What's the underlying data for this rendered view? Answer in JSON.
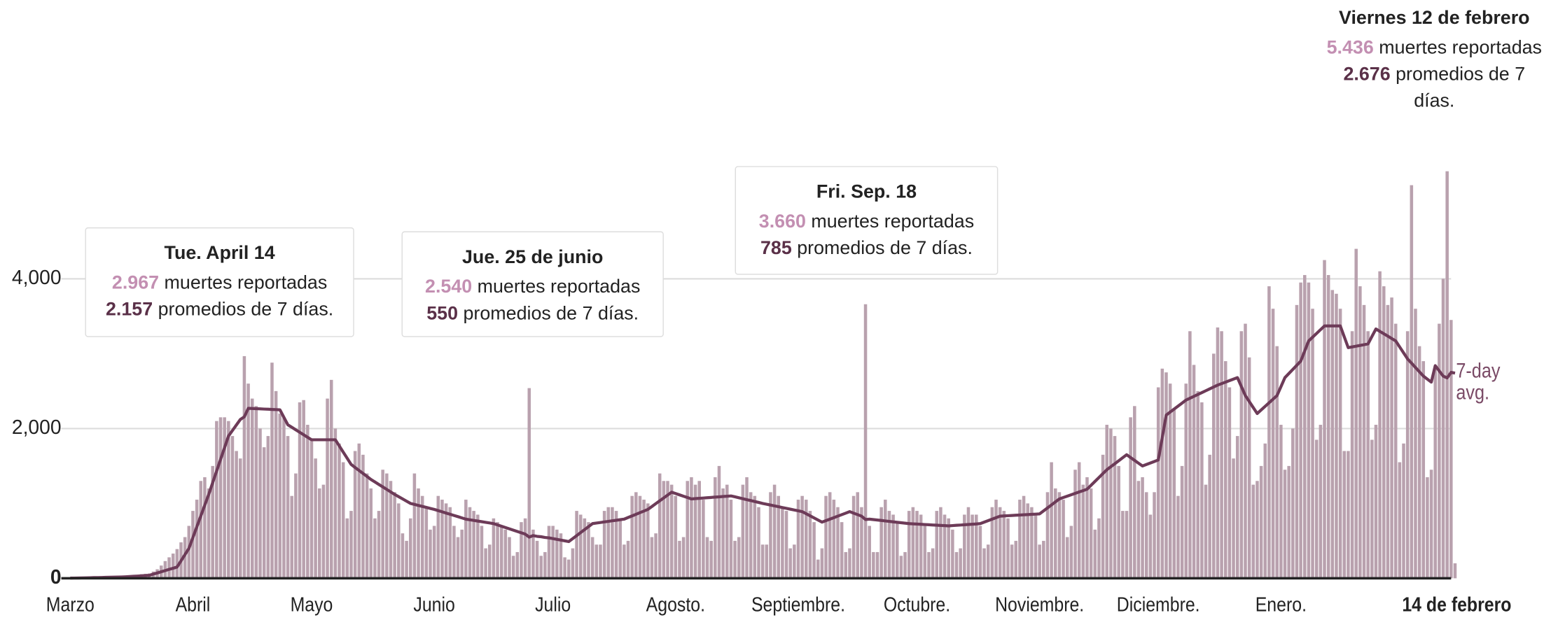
{
  "chart_data": {
    "type": "bar",
    "ylim": [
      0,
      5500
    ],
    "yticks": [
      0,
      {
        "value": 2000,
        "label": "2,000"
      },
      {
        "value": 4000,
        "label": "4,000"
      }
    ],
    "grid": true,
    "categories": [
      "Marzo",
      null,
      null,
      null,
      null,
      null,
      null,
      null,
      null,
      null,
      null,
      null,
      null,
      null,
      null,
      null,
      null,
      null,
      null,
      null,
      null,
      null,
      null,
      null,
      null,
      null,
      null,
      null,
      null,
      null,
      null,
      "Abril",
      null,
      null,
      null,
      null,
      null,
      null,
      null,
      null,
      null,
      null,
      null,
      null,
      null,
      null,
      null,
      null,
      null,
      null,
      null,
      null,
      null,
      null,
      null,
      null,
      null,
      null,
      null,
      null,
      null,
      "Mayo",
      null,
      null,
      null,
      null,
      null,
      null,
      null,
      null,
      null,
      null,
      null,
      null,
      null,
      null,
      null,
      null,
      null,
      null,
      null,
      null,
      null,
      null,
      null,
      null,
      null,
      null,
      null,
      null,
      null,
      null,
      "Junio",
      null,
      null,
      null,
      null,
      null,
      null,
      null,
      null,
      null,
      null,
      null,
      null,
      null,
      null,
      null,
      null,
      null,
      null,
      null,
      null,
      null,
      null,
      null,
      null,
      null,
      null,
      null,
      null,
      null,
      "Julio",
      null,
      null,
      null,
      null,
      null,
      null,
      null,
      null,
      null,
      null,
      null,
      null,
      null,
      null,
      null,
      null,
      null,
      null,
      null,
      null,
      null,
      null,
      null,
      null,
      null,
      null,
      null,
      null,
      null,
      null,
      "Agosto.",
      null,
      null,
      null,
      null,
      null,
      null,
      null,
      null,
      null,
      null,
      null,
      null,
      null,
      null,
      null,
      null,
      null,
      null,
      null,
      null,
      null,
      null,
      null,
      null,
      null,
      null,
      null,
      null,
      null,
      null,
      "Septiembre.",
      null,
      null,
      null,
      null,
      null,
      null,
      null,
      null,
      null,
      null,
      null,
      null,
      null,
      null,
      null,
      null,
      null,
      null,
      null,
      null,
      null,
      null,
      null,
      null,
      null,
      null,
      null,
      null,
      null,
      "Octubre.",
      null,
      null,
      null,
      null,
      null,
      null,
      null,
      null,
      null,
      null,
      null,
      null,
      null,
      null,
      null,
      null,
      null,
      null,
      null,
      null,
      null,
      null,
      null,
      null,
      null,
      null,
      null,
      null,
      null,
      null,
      "Noviembre.",
      null,
      null,
      null,
      null,
      null,
      null,
      null,
      null,
      null,
      null,
      null,
      null,
      null,
      null,
      null,
      null,
      null,
      null,
      null,
      null,
      null,
      null,
      null,
      null,
      null,
      null,
      null,
      null,
      null,
      "Diciembre.",
      null,
      null,
      null,
      null,
      null,
      null,
      null,
      null,
      null,
      null,
      null,
      null,
      null,
      null,
      null,
      null,
      null,
      null,
      null,
      null,
      null,
      null,
      null,
      null,
      null,
      null,
      null,
      null,
      null,
      null,
      "Enero.",
      null,
      null,
      null,
      null,
      null,
      null,
      null,
      null,
      null,
      null,
      null,
      null,
      null,
      null,
      null,
      null,
      null,
      null,
      null,
      null,
      null,
      null,
      null,
      null,
      null,
      null,
      null,
      null,
      null,
      null,
      null,
      null,
      null,
      null,
      null,
      null,
      null,
      null,
      null,
      null,
      null,
      null,
      null,
      "14 de febrero"
    ],
    "series": [
      {
        "type": "bar",
        "color": "#b9a1ae",
        "values": [
          1,
          2,
          3,
          3,
          4,
          3,
          5,
          5,
          8,
          9,
          10,
          12,
          15,
          18,
          20,
          25,
          35,
          45,
          55,
          60,
          65,
          90,
          120,
          170,
          230,
          280,
          330,
          390,
          480,
          550,
          700,
          900,
          1050,
          1300,
          1350,
          1200,
          1500,
          2100,
          2150,
          2150,
          2100,
          1900,
          1700,
          1600,
          2967,
          2600,
          2400,
          2300,
          2000,
          1750,
          1900,
          2880,
          2500,
          2200,
          2150,
          1900,
          1100,
          1400,
          2350,
          2380,
          2050,
          1850,
          1600,
          1200,
          1250,
          2400,
          2650,
          2000,
          1800,
          1550,
          800,
          900,
          1700,
          1800,
          1650,
          1400,
          1200,
          800,
          900,
          1450,
          1400,
          1300,
          1150,
          1000,
          600,
          500,
          800,
          1400,
          1200,
          1100,
          950,
          650,
          700,
          1100,
          1050,
          1000,
          950,
          700,
          550,
          650,
          1050,
          950,
          900,
          850,
          700,
          400,
          450,
          800,
          750,
          700,
          650,
          550,
          300,
          350,
          750,
          800,
          2540,
          650,
          500,
          300,
          350,
          700,
          700,
          650,
          600,
          280,
          250,
          400,
          900,
          850,
          800,
          750,
          550,
          450,
          450,
          900,
          950,
          950,
          900,
          800,
          450,
          500,
          1100,
          1150,
          1100,
          1050,
          1000,
          550,
          600,
          1400,
          1300,
          1300,
          1250,
          1100,
          500,
          550,
          1300,
          1350,
          1250,
          1300,
          1050,
          550,
          500,
          1350,
          1500,
          1200,
          1250,
          1050,
          500,
          550,
          1250,
          1350,
          1150,
          1100,
          950,
          450,
          450,
          1150,
          1250,
          1100,
          950,
          900,
          400,
          450,
          1050,
          1100,
          1050,
          900,
          750,
          250,
          400,
          1100,
          1150,
          1050,
          950,
          750,
          350,
          400,
          1100,
          1150,
          950,
          3660,
          700,
          350,
          350,
          950,
          1050,
          900,
          850,
          750,
          300,
          350,
          900,
          950,
          900,
          850,
          700,
          350,
          400,
          900,
          950,
          850,
          800,
          650,
          350,
          400,
          850,
          950,
          850,
          850,
          700,
          400,
          450,
          950,
          1050,
          950,
          900,
          800,
          450,
          500,
          1050,
          1100,
          1000,
          950,
          850,
          450,
          500,
          1150,
          1550,
          1200,
          1150,
          1050,
          550,
          700,
          1450,
          1550,
          1250,
          1350,
          1200,
          650,
          800,
          1650,
          2050,
          2000,
          1900,
          1500,
          900,
          900,
          2150,
          2300,
          1300,
          1350,
          1150,
          850,
          1150,
          2550,
          2800,
          2750,
          2600,
          2250,
          1100,
          1500,
          2600,
          3300,
          2850,
          2500,
          2350,
          1250,
          1650,
          3000,
          3350,
          3300,
          2900,
          2550,
          1600,
          1900,
          3300,
          3400,
          2950,
          1250,
          1300,
          1500,
          1800,
          3900,
          3600,
          3100,
          2050,
          1450,
          1500,
          2000,
          3650,
          3950,
          4050,
          3950,
          3600,
          1850,
          2050,
          4250,
          4050,
          3850,
          3800,
          3600,
          1700,
          1700,
          3300,
          4400,
          3900,
          3650,
          3300,
          1850,
          2050,
          4100,
          3900,
          3650,
          3750,
          3400,
          1550,
          1800,
          3300,
          5250,
          3600,
          3100,
          2900,
          1350,
          1450,
          2800,
          3400,
          4000,
          5436,
          3450,
          200
        ]
      },
      {
        "type": "line",
        "name": "7-day avg.",
        "color": "#6d3b58",
        "values": [
          2,
          3,
          4,
          5,
          6,
          7,
          9,
          10,
          11,
          13,
          14,
          15,
          17,
          18,
          20,
          23,
          27,
          30,
          33,
          37,
          40,
          56,
          71,
          87,
          103,
          119,
          134,
          150,
          233,
          317,
          400,
          544,
          688,
          832,
          976,
          1120,
          1276,
          1432,
          1588,
          1744,
          1900,
          1974,
          2048,
          2122,
          2157,
          2270,
          2268,
          2265,
          2263,
          2260,
          2258,
          2255,
          2253,
          2250,
          2150,
          2050,
          2017,
          1983,
          1950,
          1917,
          1883,
          1850,
          1850,
          1850,
          1850,
          1850,
          1850,
          1850,
          1768,
          1685,
          1603,
          1520,
          1480,
          1440,
          1400,
          1360,
          1320,
          1287,
          1253,
          1220,
          1187,
          1153,
          1120,
          1090,
          1060,
          1030,
          1000,
          987,
          973,
          960,
          947,
          933,
          920,
          904,
          888,
          871,
          855,
          839,
          823,
          806,
          790,
          781,
          773,
          764,
          756,
          747,
          739,
          730,
          713,
          695,
          678,
          660,
          643,
          625,
          608,
          590,
          550,
          570,
          560,
          555,
          545,
          540,
          530,
          520,
          510,
          500,
          490,
          530,
          570,
          610,
          650,
          690,
          730,
          738,
          745,
          753,
          760,
          768,
          775,
          783,
          790,
          812,
          833,
          855,
          877,
          898,
          920,
          958,
          997,
          1035,
          1073,
          1112,
          1150,
          1132,
          1114,
          1096,
          1078,
          1060,
          1064,
          1068,
          1072,
          1076,
          1080,
          1084,
          1088,
          1092,
          1096,
          1100,
          1088,
          1075,
          1063,
          1050,
          1038,
          1025,
          1013,
          1000,
          989,
          978,
          967,
          956,
          945,
          934,
          923,
          912,
          901,
          890,
          862,
          834,
          806,
          778,
          750,
          770,
          790,
          810,
          830,
          850,
          870,
          890,
          870,
          850,
          830,
          785,
          790,
          784,
          778,
          772,
          766,
          760,
          754,
          748,
          742,
          736,
          730,
          727,
          724,
          721,
          718,
          715,
          712,
          709,
          706,
          703,
          700,
          704,
          708,
          711,
          715,
          719,
          722,
          726,
          730,
          750,
          770,
          790,
          810,
          830,
          833,
          836,
          839,
          842,
          845,
          848,
          851,
          854,
          857,
          860,
          900,
          940,
          980,
          1020,
          1060,
          1079,
          1097,
          1116,
          1134,
          1153,
          1171,
          1190,
          1242,
          1294,
          1346,
          1398,
          1450,
          1490,
          1530,
          1570,
          1610,
          1650,
          1612,
          1575,
          1537,
          1500,
          1520,
          1540,
          1560,
          1580,
          1880,
          2180,
          2220,
          2260,
          2300,
          2340,
          2380,
          2405,
          2430,
          2455,
          2480,
          2505,
          2530,
          2555,
          2580,
          2600,
          2620,
          2640,
          2660,
          2680,
          2560,
          2440,
          2360,
          2280,
          2200,
          2248,
          2296,
          2344,
          2392,
          2440,
          2560,
          2680,
          2735,
          2790,
          2845,
          2900,
          3035,
          3170,
          3220,
          3270,
          3320,
          3370,
          3370,
          3370,
          3370,
          3370,
          3225,
          3080,
          3090,
          3100,
          3110,
          3120,
          3130,
          3230,
          3330,
          3298,
          3266,
          3234,
          3202,
          3170,
          3090,
          3010,
          2930,
          2873,
          2815,
          2758,
          2700,
          2660,
          2620,
          2840,
          2770,
          2700,
          2676,
          2750,
          2740
        ]
      }
    ],
    "annotations": [
      {
        "date": "Tue. April 14",
        "deaths": 2967,
        "deaths_label": "2.967",
        "deaths_text": "muertes reportadas",
        "avg": 2157,
        "avg_label": "2.157",
        "avg_text": "promedios de 7 días."
      },
      {
        "date": "Jue. 25 de junio",
        "deaths": 2540,
        "deaths_label": "2.540",
        "deaths_text": "muertes reportadas",
        "avg": 550,
        "avg_label": "550",
        "avg_text": "promedios de 7 días."
      },
      {
        "date": "Fri. Sep. 18",
        "deaths": 3660,
        "deaths_label": "3.660",
        "deaths_text": "muertes reportadas",
        "avg": 785,
        "avg_label": "785",
        "avg_text": "promedios de 7 días."
      },
      {
        "date": "Viernes 12 de febrero",
        "deaths": 5436,
        "deaths_label": "5.436",
        "deaths_text": "muertes reportadas",
        "avg": 2676,
        "avg_label": "2.676",
        "avg_text": "promedios de 7 días."
      }
    ]
  }
}
